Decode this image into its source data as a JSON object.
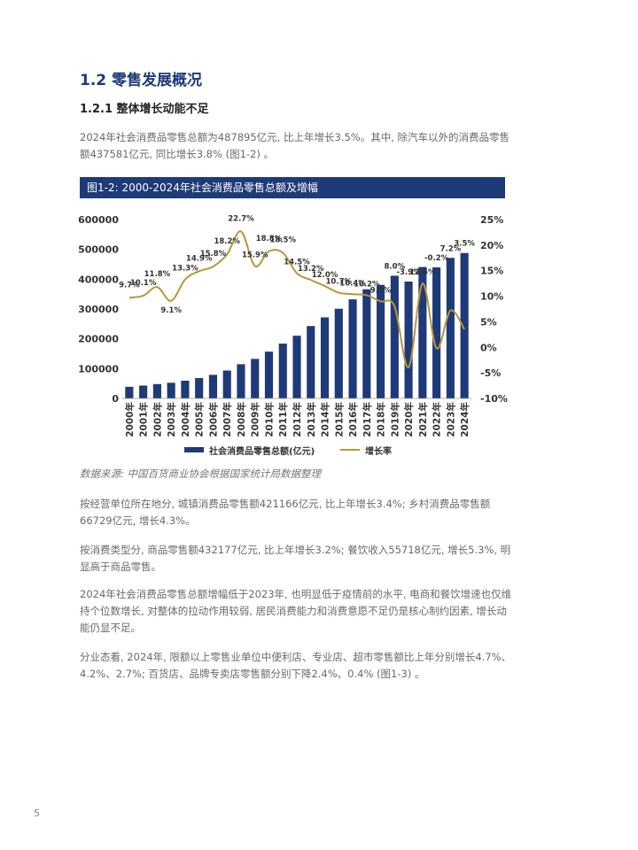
{
  "heading": "1.2 零售发展概况",
  "subheading": "1.2.1 整体增长动能不足",
  "para1": "2024年社会消费品零售总额为487895亿元, 比上年增长3.5%。其中, 除汽车以外的消费品零售额437581亿元, 同比增长3.8% (图1-2) 。",
  "figure_caption": "图1-2:  2000-2024年社会消费品零售总额及增幅",
  "source_note": "数据来源: 中国百货商业协会根据国家统计局数据整理",
  "para2": "按经营单位所在地分, 城镇消费品零售额421166亿元, 比上年增长3.4%; 乡村消费品零售额66729亿元, 增长4.3%。",
  "para3": "按消费类型分, 商品零售额432177亿元, 比上年增长3.2%; 餐饮收入55718亿元, 增长5.3%, 明显高于商品零售。",
  "para4": "2024年社会消费品零售总额增幅低于2023年, 也明显低于疫情前的水平, 电商和餐饮增速也仅维持个位数增长, 对整体的拉动作用较弱, 居民消费能力和消费意愿不足仍是核心制约因素, 增长动能仍显不足。",
  "para5": "分业态看, 2024年, 限额以上零售业单位中便利店、专业店、超市零售额比上年分别增长4.7%、4.2%、2.7%; 百货店、品牌专卖店零售额分别下降2.4%、0.4% (图1-3) 。",
  "page_number": "5",
  "colors": {
    "accent": "#1f3a78",
    "bar": "#1f3a78",
    "line": "#b8963c"
  },
  "chart_data": {
    "type": "bar",
    "categories": [
      "2000年",
      "2001年",
      "2002年",
      "2003年",
      "2004年",
      "2005年",
      "2006年",
      "2007年",
      "2008年",
      "2009年",
      "2010年",
      "2011年",
      "2012年",
      "2013年",
      "2014年",
      "2015年",
      "2016年",
      "2017年",
      "2018年",
      "2019年",
      "2020年",
      "2021年",
      "2022年",
      "2023年",
      "2024年"
    ],
    "series": [
      {
        "name": "社会消费品零售总额(亿元)",
        "type": "bar",
        "axis": "left",
        "values": [
          39106,
          43055,
          48136,
          52516,
          59501,
          68353,
          79145,
          93572,
          114830,
          132678,
          156998,
          183919,
          210307,
          242843,
          271896,
          300931,
          332316,
          366262,
          380987,
          411649,
          391981,
          440823,
          439733,
          471495,
          487895
        ]
      },
      {
        "name": "增长率",
        "type": "line",
        "axis": "right",
        "values": [
          9.7,
          10.1,
          11.8,
          9.1,
          13.3,
          14.9,
          15.8,
          18.2,
          22.7,
          15.9,
          18.8,
          18.5,
          14.5,
          13.2,
          12.0,
          10.7,
          10.4,
          10.2,
          9.0,
          8.0,
          -3.9,
          12.5,
          -0.2,
          7.2,
          3.5
        ]
      }
    ],
    "data_labels": [
      "9.7%",
      "10.1%",
      "11.8%",
      "9.1%",
      "13.3%",
      "14.9%",
      "15.8%",
      "18.2%",
      "22.7%",
      "15.9%",
      "18.8%",
      "18.5%",
      "14.5%",
      "13.2%",
      "12.0%",
      "10.7%",
      "10.4%",
      "10.2%",
      "9.0%",
      "8.0%",
      "-3.9%",
      "12.5%",
      "-0.2%",
      "7.2%",
      "3.5%"
    ],
    "y_left": {
      "ticks": [
        "600000",
        "500000",
        "400000",
        "300000",
        "200000",
        "100000",
        "0"
      ],
      "ylim": [
        0,
        600000
      ]
    },
    "y_right": {
      "ticks": [
        "25%",
        "20%",
        "15%",
        "10%",
        "5%",
        "0%",
        "-5%",
        "-10%"
      ],
      "ylim": [
        -10,
        25
      ]
    },
    "legend_position": "bottom",
    "grid": false
  }
}
